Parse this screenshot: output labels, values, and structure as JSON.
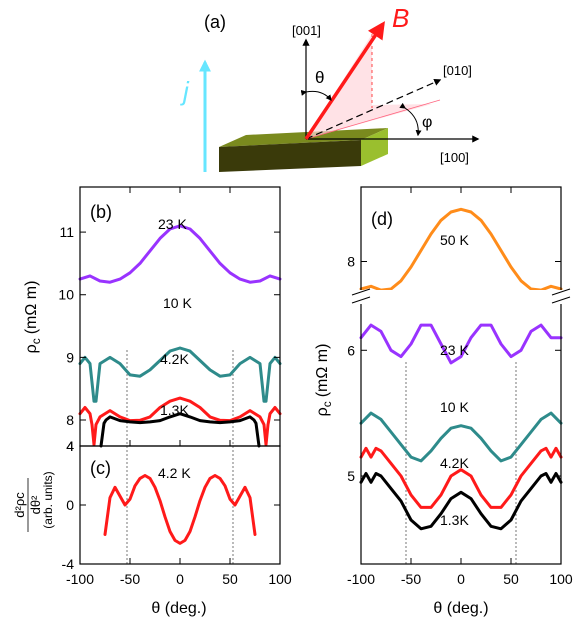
{
  "diagram": {
    "panel_label": "(a)",
    "field_label": "B",
    "current_label": "j",
    "theta_label": "θ",
    "phi_label": "φ",
    "axis_001": "[001]",
    "axis_010": "[010]",
    "axis_100": "[100]",
    "colors": {
      "field": "#ff1a1a",
      "current": "#66e6ff",
      "crystal_top": "#7a8a1e",
      "crystal_side": "#3a3a0a",
      "crystal_end": "#9abf2e"
    }
  },
  "chart_data": [
    {
      "id": "b",
      "type": "line",
      "panel_label": "(b)",
      "xlim": [
        -100,
        100
      ],
      "ylim": [
        4,
        11.5
      ],
      "ylabel": "ρc (mΩ m)",
      "ylabel_main": "ρ",
      "ylabel_sub": "c",
      "ylabel_unit": "(mΩ m)",
      "yticks": [
        4,
        8,
        9,
        10,
        11
      ],
      "ytick_labels": [
        "4",
        "8",
        "9",
        "10",
        "11"
      ],
      "axis_break": "between 4 and 8",
      "vlines": [
        -53,
        53
      ],
      "series": [
        {
          "name": "23 K",
          "color": "#9933ff",
          "x": [
            -100,
            -90,
            -80,
            -70,
            -60,
            -50,
            -40,
            -30,
            -20,
            -10,
            0,
            10,
            20,
            30,
            40,
            50,
            60,
            70,
            80,
            90,
            100
          ],
          "y": [
            10.25,
            10.3,
            10.22,
            10.2,
            10.25,
            10.35,
            10.5,
            10.7,
            10.9,
            11.05,
            11.1,
            11.05,
            10.9,
            10.7,
            10.5,
            10.35,
            10.25,
            10.2,
            10.22,
            10.3,
            10.25
          ]
        },
        {
          "name": "10 K",
          "color": "#2e8b8b",
          "x": [
            -100,
            -95,
            -90,
            -86,
            -84,
            -80,
            -70,
            -60,
            -50,
            -40,
            -30,
            -20,
            -10,
            0,
            10,
            20,
            30,
            40,
            50,
            60,
            70,
            80,
            84,
            86,
            90,
            95,
            100
          ],
          "y": [
            8.9,
            9.0,
            8.9,
            8.3,
            8.3,
            8.9,
            9.0,
            8.9,
            8.72,
            8.7,
            8.8,
            8.95,
            9.1,
            9.15,
            9.1,
            8.95,
            8.8,
            8.7,
            8.72,
            8.9,
            9.0,
            8.9,
            8.3,
            8.3,
            8.9,
            9.0,
            8.9
          ]
        },
        {
          "name": "4.2K",
          "color": "#ff1a1a",
          "x": [
            -100,
            -95,
            -90,
            -88,
            -86,
            -84,
            -80,
            -70,
            -60,
            -50,
            -40,
            -30,
            -20,
            -10,
            0,
            10,
            20,
            30,
            40,
            50,
            60,
            70,
            80,
            84,
            86,
            88,
            90,
            95,
            100
          ],
          "y": [
            8.1,
            8.2,
            8.1,
            7.3,
            4.2,
            7.3,
            8.05,
            8.15,
            8.05,
            7.9,
            7.95,
            8.05,
            8.2,
            8.3,
            8.35,
            8.3,
            8.2,
            8.05,
            7.95,
            7.9,
            8.05,
            8.15,
            8.05,
            7.3,
            4.2,
            7.3,
            8.1,
            8.2,
            8.1
          ]
        },
        {
          "name": "1.3K",
          "color": "#000000",
          "x": [
            -79,
            -76,
            -74,
            -70,
            -60,
            -50,
            -40,
            -30,
            -20,
            -10,
            0,
            10,
            20,
            30,
            40,
            50,
            60,
            70,
            74,
            76,
            79
          ],
          "y": [
            4.0,
            7.5,
            8.0,
            8.05,
            7.9,
            7.7,
            7.6,
            7.7,
            7.9,
            8.05,
            8.1,
            8.05,
            7.9,
            7.7,
            7.6,
            7.7,
            7.9,
            8.05,
            8.0,
            7.5,
            4.0
          ]
        }
      ]
    },
    {
      "id": "c",
      "type": "line",
      "panel_label": "(c)",
      "xlim": [
        -100,
        100
      ],
      "ylim": [
        -4,
        4
      ],
      "xlabel": "θ (deg.)",
      "xticks": [
        -100,
        -50,
        0,
        50,
        100
      ],
      "xtick_labels": [
        "-100",
        "-50",
        "0",
        "50",
        "100"
      ],
      "yticks": [
        -4,
        0,
        4
      ],
      "ytick_labels": [
        "-4",
        "0",
        "4"
      ],
      "ylabel_lines": [
        "d²ρc",
        "dθ²",
        "(arb. units)"
      ],
      "vlines": [
        -53,
        53
      ],
      "series": [
        {
          "name": "4.2 K",
          "color": "#ff1a1a",
          "x": [
            -75,
            -70,
            -65,
            -60,
            -55,
            -50,
            -45,
            -40,
            -35,
            -30,
            -25,
            -20,
            -15,
            -10,
            -5,
            0,
            5,
            10,
            15,
            20,
            25,
            30,
            35,
            40,
            45,
            50,
            55,
            60,
            65,
            70,
            75
          ],
          "y": [
            -2.0,
            0.5,
            1.2,
            0.6,
            0.0,
            0.4,
            1.3,
            1.8,
            2.0,
            1.8,
            1.2,
            0.3,
            -0.8,
            -1.8,
            -2.4,
            -2.6,
            -2.4,
            -1.8,
            -0.8,
            0.3,
            1.2,
            1.8,
            2.0,
            1.8,
            1.3,
            0.4,
            0.0,
            0.6,
            1.2,
            0.5,
            -2.0
          ]
        }
      ]
    },
    {
      "id": "d",
      "type": "line",
      "panel_label": "(d)",
      "xlim": [
        -100,
        100
      ],
      "xlabel": "θ (deg.)",
      "xticks": [
        -100,
        -50,
        0,
        50,
        100
      ],
      "xtick_labels": [
        "-100",
        "-50",
        "0",
        "50",
        "100"
      ],
      "ylabel": "ρc (mΩ m)",
      "ylabel_main": "ρ",
      "ylabel_sub": "c",
      "ylabel_unit": "(mΩ m)",
      "yticks_lower": [
        5,
        6
      ],
      "ytick_labels_lower": [
        "5",
        "6"
      ],
      "ylim_lower": [
        4.3,
        6.4
      ],
      "yticks_upper": [
        8
      ],
      "ytick_labels_upper": [
        "8"
      ],
      "ylim_upper": [
        7.3,
        9.3
      ],
      "axis_break": "between 6.4 and 7.3",
      "vlines": [
        -55,
        55
      ],
      "series": [
        {
          "name": "50 K",
          "color": "#ff8c1a",
          "x": [
            -100,
            -90,
            -80,
            -70,
            -60,
            -50,
            -40,
            -30,
            -20,
            -10,
            0,
            10,
            20,
            30,
            40,
            50,
            60,
            70,
            80,
            90,
            100
          ],
          "y": [
            7.5,
            7.55,
            7.48,
            7.5,
            7.65,
            7.9,
            8.2,
            8.5,
            8.75,
            8.9,
            8.95,
            8.9,
            8.75,
            8.5,
            8.2,
            7.9,
            7.65,
            7.5,
            7.48,
            7.55,
            7.5
          ]
        },
        {
          "name": "23 K",
          "color": "#9933ff",
          "x": [
            -100,
            -90,
            -80,
            -70,
            -60,
            -50,
            -40,
            -30,
            -20,
            -10,
            0,
            10,
            20,
            30,
            40,
            50,
            60,
            70,
            80,
            90,
            100
          ],
          "y": [
            6.1,
            6.2,
            6.15,
            6.0,
            5.95,
            6.05,
            6.2,
            6.2,
            6.05,
            5.9,
            5.95,
            6.1,
            6.2,
            6.2,
            6.05,
            5.95,
            6.0,
            6.15,
            6.2,
            6.1,
            6.1
          ]
        },
        {
          "name": "10 K",
          "color": "#2e8b8b",
          "x": [
            -100,
            -90,
            -80,
            -70,
            -60,
            -50,
            -40,
            -30,
            -20,
            -10,
            0,
            10,
            20,
            30,
            40,
            50,
            60,
            70,
            80,
            90,
            100
          ],
          "y": [
            5.42,
            5.5,
            5.45,
            5.35,
            5.25,
            5.15,
            5.12,
            5.2,
            5.3,
            5.38,
            5.4,
            5.38,
            5.3,
            5.2,
            5.12,
            5.15,
            5.25,
            5.35,
            5.45,
            5.5,
            5.42
          ]
        },
        {
          "name": "4.2K",
          "color": "#ff1a1a",
          "x": [
            -100,
            -95,
            -90,
            -85,
            -80,
            -70,
            -60,
            -50,
            -40,
            -30,
            -20,
            -10,
            0,
            10,
            20,
            30,
            40,
            50,
            60,
            70,
            80,
            85,
            90,
            95,
            100
          ],
          "y": [
            5.15,
            5.22,
            5.15,
            5.22,
            5.2,
            5.1,
            5.0,
            4.85,
            4.75,
            4.75,
            4.85,
            5.0,
            5.05,
            5.0,
            4.85,
            4.75,
            4.75,
            4.85,
            5.0,
            5.1,
            5.2,
            5.22,
            5.15,
            5.22,
            5.15
          ]
        },
        {
          "name": "1.3K",
          "color": "#000000",
          "x": [
            -100,
            -95,
            -90,
            -85,
            -80,
            -70,
            -60,
            -50,
            -40,
            -30,
            -20,
            -10,
            0,
            10,
            20,
            30,
            40,
            50,
            60,
            70,
            80,
            85,
            90,
            95,
            100
          ],
          "y": [
            4.95,
            5.02,
            4.95,
            5.02,
            5.0,
            4.9,
            4.8,
            4.65,
            4.58,
            4.6,
            4.7,
            4.82,
            4.87,
            4.82,
            4.7,
            4.6,
            4.58,
            4.65,
            4.8,
            4.9,
            5.0,
            5.02,
            4.95,
            5.02,
            4.95
          ]
        }
      ]
    }
  ]
}
